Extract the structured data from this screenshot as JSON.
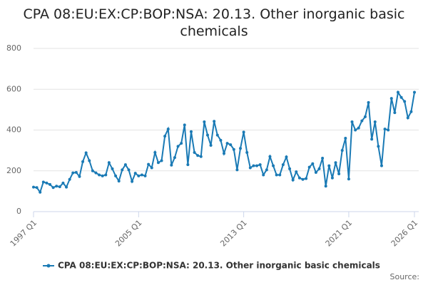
{
  "chart_data": {
    "type": "line",
    "title": "CPA 08:EU:EX:CP:BOP:NSA: 20.13. Other inorganic basic chemicals",
    "source": "Source:",
    "categories": [
      "1997 Q1",
      null,
      null,
      null,
      null,
      null,
      null,
      null,
      null,
      null,
      null,
      null,
      null,
      null,
      null,
      null,
      null,
      null,
      null,
      null,
      null,
      null,
      null,
      null,
      null,
      null,
      null,
      null,
      null,
      null,
      null,
      null,
      "2005 Q1",
      null,
      null,
      null,
      null,
      null,
      null,
      null,
      null,
      null,
      null,
      null,
      null,
      null,
      null,
      null,
      null,
      null,
      null,
      null,
      null,
      null,
      null,
      null,
      null,
      null,
      null,
      null,
      null,
      null,
      null,
      null,
      "2013 Q1",
      null,
      null,
      null,
      null,
      null,
      null,
      null,
      null,
      null,
      null,
      null,
      null,
      null,
      null,
      null,
      null,
      null,
      null,
      null,
      null,
      null,
      null,
      null,
      null,
      null,
      null,
      null,
      null,
      null,
      null,
      null,
      "2021 Q1",
      null,
      null,
      null,
      null,
      null,
      null,
      null,
      null,
      null,
      null,
      null,
      null,
      null,
      null,
      null,
      null,
      null,
      null,
      null,
      "2026 Q1"
    ],
    "series": [
      {
        "name": "CPA 08:EU:EX:CP:BOP:NSA: 20.13. Other inorganic basic chemicals",
        "color": "#1a7ab5",
        "values": [
          120,
          118,
          95,
          145,
          140,
          133,
          118,
          125,
          122,
          140,
          120,
          158,
          190,
          192,
          172,
          245,
          288,
          250,
          200,
          190,
          180,
          175,
          180,
          240,
          210,
          175,
          150,
          205,
          230,
          205,
          148,
          188,
          175,
          180,
          175,
          232,
          215,
          290,
          240,
          250,
          370,
          405,
          228,
          265,
          320,
          335,
          425,
          230,
          392,
          290,
          275,
          270,
          440,
          375,
          325,
          443,
          375,
          350,
          285,
          335,
          328,
          305,
          205,
          310,
          390,
          290,
          215,
          225,
          225,
          230,
          180,
          205,
          270,
          225,
          180,
          180,
          230,
          268,
          210,
          155,
          195,
          165,
          158,
          162,
          218,
          235,
          192,
          210,
          262,
          125,
          225,
          165,
          240,
          185,
          300,
          360,
          160,
          440,
          400,
          410,
          445,
          465,
          535,
          355,
          440,
          320,
          225,
          405,
          400,
          555,
          485,
          585,
          560,
          540,
          460,
          490,
          585
        ]
      }
    ],
    "ylim": [
      0,
      800
    ],
    "yticks": [
      0,
      200,
      400,
      600,
      800
    ],
    "grid": true,
    "legend": "bottom"
  }
}
